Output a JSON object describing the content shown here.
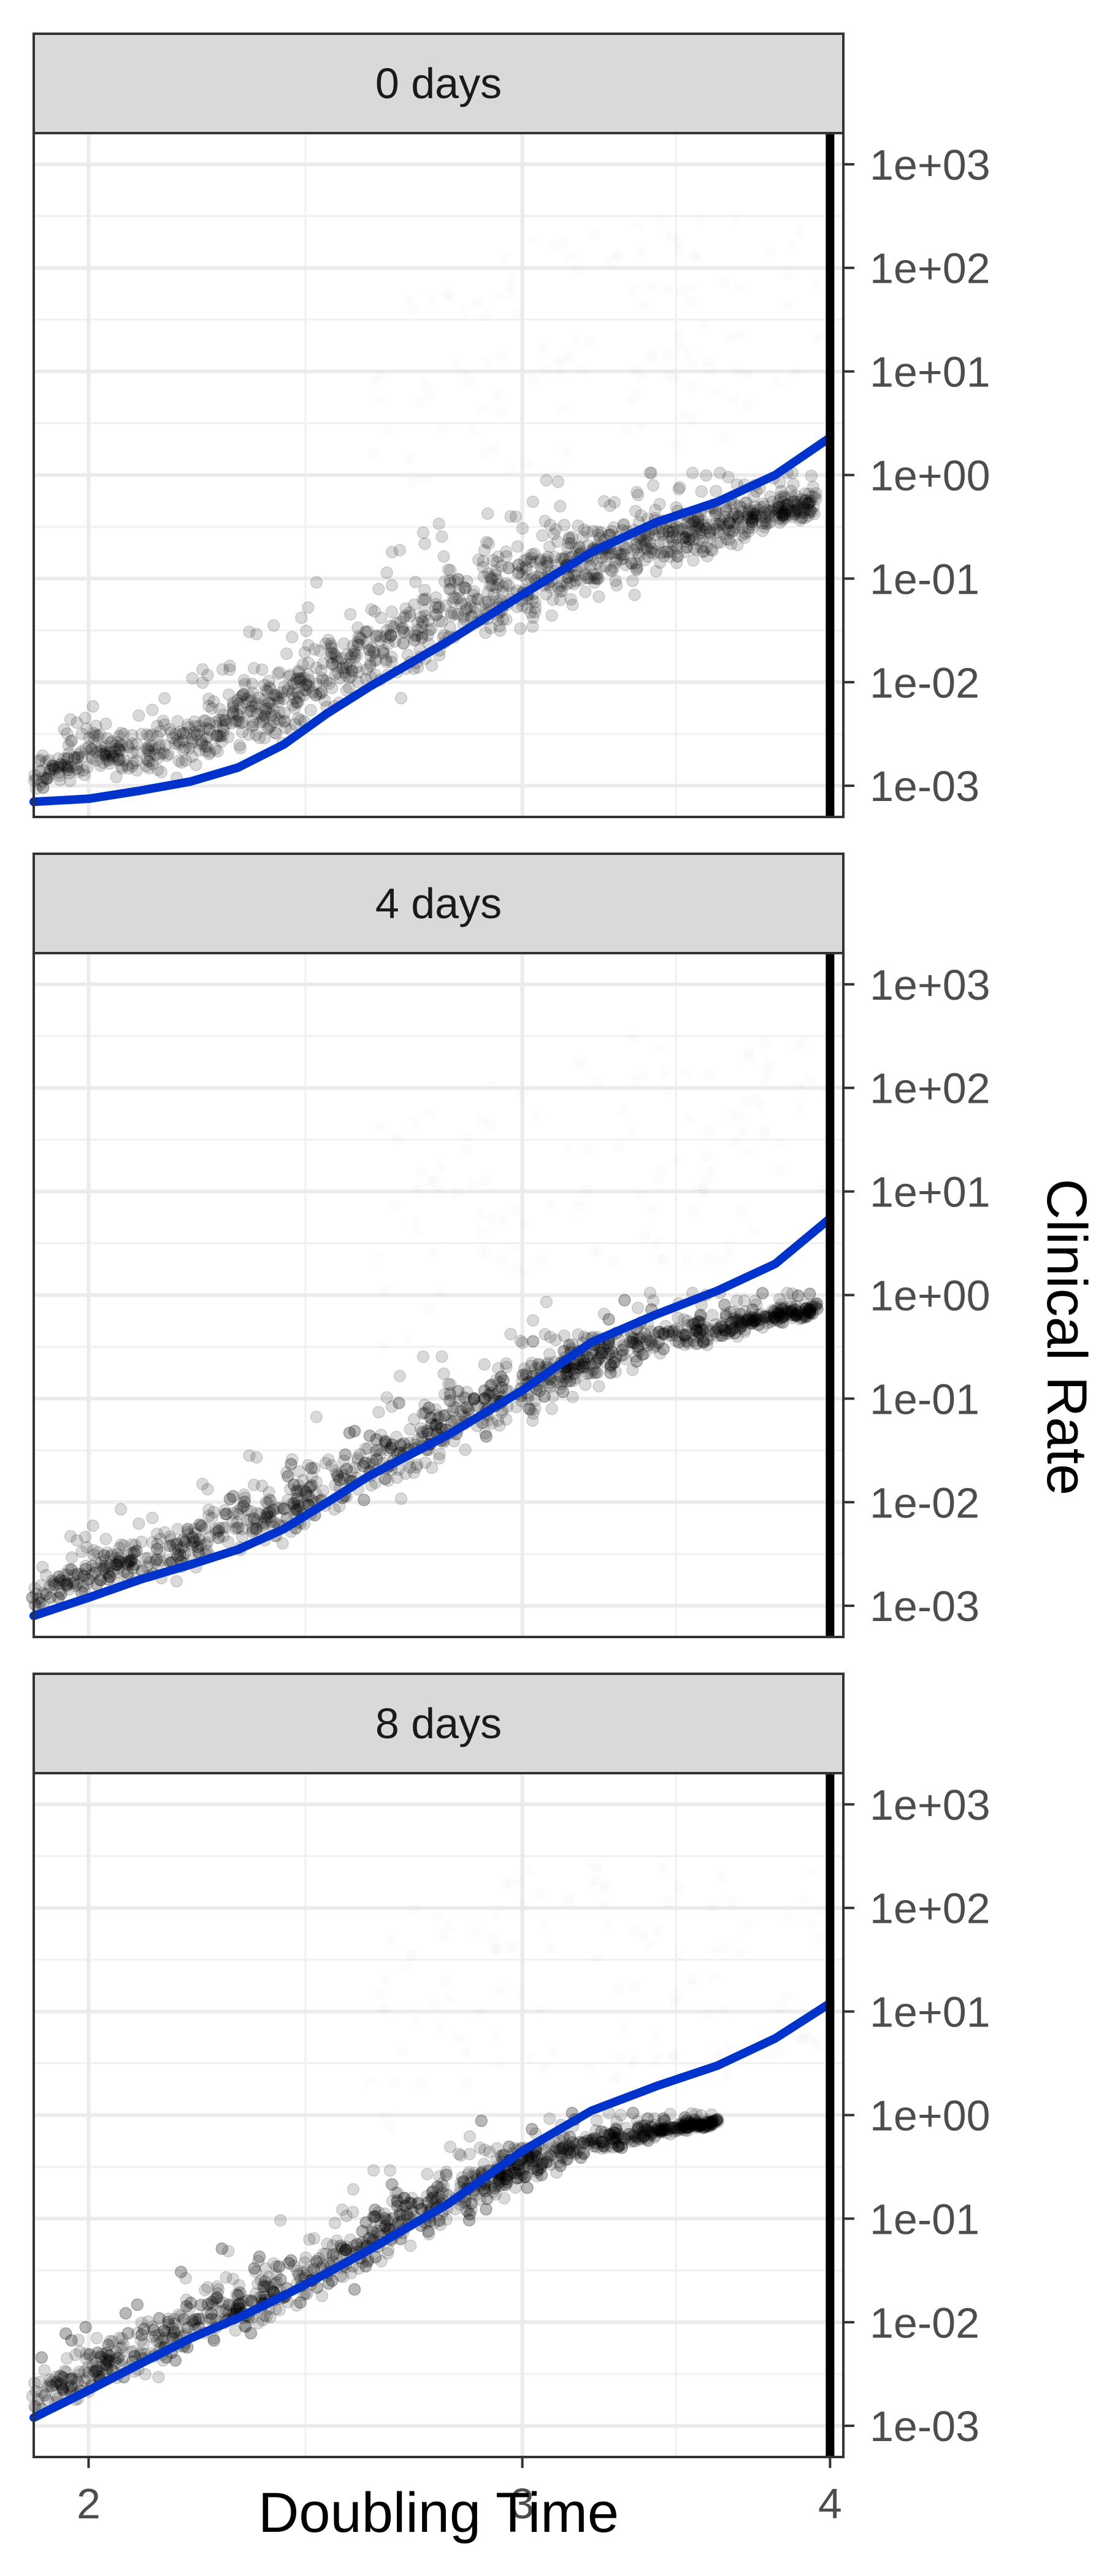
{
  "chart_data": {
    "type": "scatter",
    "facet_by": "lag",
    "xlabel": "Doubling Time",
    "ylabel": "Clinical Rate",
    "x_scale": "log",
    "y_scale": "log",
    "xlim": [
      1.9,
      4.05
    ],
    "ylim": [
      0.0005,
      2000
    ],
    "x_ticks": [
      2,
      3,
      4
    ],
    "x_tick_labels": [
      "2",
      "3",
      "4"
    ],
    "y_ticks": [
      0.001,
      0.01,
      0.1,
      1,
      10,
      100,
      1000
    ],
    "y_tick_labels": [
      "1e-03",
      "1e-02",
      "1e-01",
      "1e+00",
      "1e+01",
      "1e+02",
      "1e+03"
    ],
    "reference_line_x": 4,
    "point_color": "#000000",
    "smooth_color": "#0033cc",
    "grid": true,
    "y_axis_position": "right",
    "panels": [
      {
        "label": "0 days",
        "smooth": {
          "x": [
            1.9,
            2.0,
            2.1,
            2.2,
            2.3,
            2.4,
            2.5,
            2.6,
            2.8,
            3.0,
            3.2,
            3.4,
            3.6,
            3.8,
            4.0
          ],
          "y": [
            0.0007,
            0.00075,
            0.0009,
            0.0011,
            0.0015,
            0.0025,
            0.005,
            0.009,
            0.025,
            0.07,
            0.18,
            0.35,
            0.55,
            1.0,
            2.3
          ]
        },
        "point_density": [
          {
            "x": 1.9,
            "lo": 0.0007,
            "hi": 0.0016
          },
          {
            "x": 2.0,
            "lo": 0.0007,
            "hi": 0.006
          },
          {
            "x": 2.1,
            "lo": 0.0007,
            "hi": 0.006
          },
          {
            "x": 2.2,
            "lo": 0.00075,
            "hi": 0.01
          },
          {
            "x": 2.3,
            "lo": 0.0009,
            "hi": 0.02
          },
          {
            "x": 2.4,
            "lo": 0.0012,
            "hi": 0.04
          },
          {
            "x": 2.5,
            "lo": 0.0018,
            "hi": 0.08
          },
          {
            "x": 2.6,
            "lo": 0.003,
            "hi": 0.15
          },
          {
            "x": 2.8,
            "lo": 0.007,
            "hi": 0.3
          },
          {
            "x": 3.0,
            "lo": 0.015,
            "hi": 0.6
          },
          {
            "x": 3.2,
            "lo": 0.03,
            "hi": 0.85
          },
          {
            "x": 3.4,
            "lo": 0.06,
            "hi": 0.95
          },
          {
            "x": 3.6,
            "lo": 0.1,
            "hi": 1.0
          },
          {
            "x": 3.8,
            "lo": 0.2,
            "hi": 1.0
          },
          {
            "x": 3.95,
            "lo": 0.3,
            "hi": 1.0
          }
        ]
      },
      {
        "label": "4 days",
        "smooth": {
          "x": [
            1.9,
            2.0,
            2.1,
            2.2,
            2.3,
            2.4,
            2.5,
            2.6,
            2.8,
            3.0,
            3.2,
            3.4,
            3.6,
            3.8,
            4.0
          ],
          "y": [
            0.0008,
            0.0012,
            0.0018,
            0.0025,
            0.0035,
            0.0055,
            0.01,
            0.018,
            0.045,
            0.12,
            0.35,
            0.65,
            1.1,
            2.0,
            5.5
          ]
        },
        "point_density": [
          {
            "x": 1.9,
            "lo": 0.0007,
            "hi": 0.002
          },
          {
            "x": 2.0,
            "lo": 0.0008,
            "hi": 0.006
          },
          {
            "x": 2.1,
            "lo": 0.0009,
            "hi": 0.008
          },
          {
            "x": 2.2,
            "lo": 0.0012,
            "hi": 0.012
          },
          {
            "x": 2.3,
            "lo": 0.0016,
            "hi": 0.02
          },
          {
            "x": 2.4,
            "lo": 0.0022,
            "hi": 0.035
          },
          {
            "x": 2.5,
            "lo": 0.0035,
            "hi": 0.06
          },
          {
            "x": 2.6,
            "lo": 0.005,
            "hi": 0.12
          },
          {
            "x": 2.8,
            "lo": 0.012,
            "hi": 0.3
          },
          {
            "x": 3.0,
            "lo": 0.03,
            "hi": 0.6
          },
          {
            "x": 3.2,
            "lo": 0.07,
            "hi": 0.9
          },
          {
            "x": 3.4,
            "lo": 0.15,
            "hi": 1.0
          },
          {
            "x": 3.6,
            "lo": 0.25,
            "hi": 1.0
          },
          {
            "x": 3.8,
            "lo": 0.4,
            "hi": 1.0
          },
          {
            "x": 3.95,
            "lo": 0.55,
            "hi": 1.0
          }
        ]
      },
      {
        "label": "8 days",
        "smooth": {
          "x": [
            1.9,
            2.0,
            2.1,
            2.2,
            2.3,
            2.4,
            2.5,
            2.6,
            2.8,
            3.0,
            3.2,
            3.4,
            3.6,
            3.8,
            4.0
          ],
          "y": [
            0.0012,
            0.0022,
            0.004,
            0.007,
            0.011,
            0.018,
            0.03,
            0.05,
            0.14,
            0.45,
            1.1,
            1.9,
            3.0,
            5.5,
            12
          ]
        },
        "point_density": [
          {
            "x": 1.9,
            "lo": 0.0009,
            "hi": 0.004
          },
          {
            "x": 2.0,
            "lo": 0.001,
            "hi": 0.01
          },
          {
            "x": 2.1,
            "lo": 0.0015,
            "hi": 0.02
          },
          {
            "x": 2.2,
            "lo": 0.0025,
            "hi": 0.03
          },
          {
            "x": 2.3,
            "lo": 0.004,
            "hi": 0.05
          },
          {
            "x": 2.4,
            "lo": 0.006,
            "hi": 0.08
          },
          {
            "x": 2.5,
            "lo": 0.01,
            "hi": 0.13
          },
          {
            "x": 2.6,
            "lo": 0.018,
            "hi": 0.25
          },
          {
            "x": 2.8,
            "lo": 0.045,
            "hi": 0.6
          },
          {
            "x": 3.0,
            "lo": 0.12,
            "hi": 0.95
          },
          {
            "x": 3.2,
            "lo": 0.3,
            "hi": 1.0
          },
          {
            "x": 3.4,
            "lo": 0.5,
            "hi": 1.0
          },
          {
            "x": 3.6,
            "lo": 0.75,
            "hi": 1.0
          }
        ]
      }
    ]
  }
}
